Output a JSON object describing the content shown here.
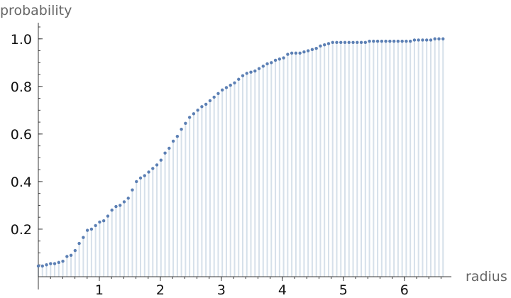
{
  "chart_data": {
    "type": "scatter",
    "style": "discrete-plot-with-filling-to-axis",
    "xlabel": "radius",
    "ylabel": "probability",
    "xlim": [
      0,
      6.7
    ],
    "ylim": [
      0,
      1.05
    ],
    "x_ticks": [
      1,
      2,
      3,
      4,
      5,
      6
    ],
    "y_ticks": [
      0.2,
      0.4,
      0.6,
      0.8,
      1.0
    ],
    "y_tick_labels": [
      "0.2",
      "0.4",
      "0.6",
      "0.8",
      "1.0"
    ],
    "x_minor_step": 0.2,
    "y_minor_step": 0.05,
    "grid": false,
    "colors": {
      "point": "#5b7fb4",
      "stem": "#d6e0ea",
      "axis": "#3a3a3a"
    },
    "series": [
      {
        "x": [
          0.0,
          0.067,
          0.134,
          0.201,
          0.268,
          0.335,
          0.402,
          0.469,
          0.536,
          0.603,
          0.67,
          0.737,
          0.804,
          0.871,
          0.938,
          1.005,
          1.072,
          1.139,
          1.206,
          1.273,
          1.34,
          1.407,
          1.474,
          1.541,
          1.608,
          1.675,
          1.742,
          1.809,
          1.876,
          1.943,
          2.01,
          2.077,
          2.144,
          2.211,
          2.278,
          2.345,
          2.412,
          2.479,
          2.546,
          2.613,
          2.68,
          2.747,
          2.814,
          2.881,
          2.948,
          3.015,
          3.082,
          3.149,
          3.216,
          3.283,
          3.35,
          3.417,
          3.484,
          3.551,
          3.618,
          3.685,
          3.752,
          3.819,
          3.886,
          3.953,
          4.02,
          4.087,
          4.154,
          4.221,
          4.288,
          4.355,
          4.422,
          4.489,
          4.556,
          4.623,
          4.69,
          4.757,
          4.824,
          4.891,
          4.958,
          5.025,
          5.092,
          5.159,
          5.226,
          5.293,
          5.36,
          5.427,
          5.494,
          5.561,
          5.628,
          5.695,
          5.762,
          5.829,
          5.896,
          5.963,
          6.03,
          6.097,
          6.164,
          6.231,
          6.298,
          6.365,
          6.432,
          6.499,
          6.566,
          6.633
        ],
        "y": [
          0.045,
          0.045,
          0.05,
          0.055,
          0.055,
          0.06,
          0.065,
          0.085,
          0.09,
          0.11,
          0.14,
          0.165,
          0.195,
          0.2,
          0.215,
          0.23,
          0.235,
          0.255,
          0.28,
          0.295,
          0.3,
          0.315,
          0.33,
          0.365,
          0.4,
          0.415,
          0.425,
          0.44,
          0.455,
          0.47,
          0.49,
          0.52,
          0.54,
          0.57,
          0.59,
          0.62,
          0.645,
          0.67,
          0.685,
          0.7,
          0.715,
          0.725,
          0.74,
          0.755,
          0.77,
          0.785,
          0.795,
          0.805,
          0.815,
          0.83,
          0.845,
          0.855,
          0.86,
          0.865,
          0.875,
          0.885,
          0.895,
          0.9,
          0.91,
          0.915,
          0.92,
          0.935,
          0.94,
          0.94,
          0.94,
          0.945,
          0.95,
          0.955,
          0.96,
          0.97,
          0.975,
          0.98,
          0.985,
          0.985,
          0.985,
          0.985,
          0.985,
          0.985,
          0.985,
          0.985,
          0.985,
          0.99,
          0.99,
          0.99,
          0.99,
          0.99,
          0.99,
          0.99,
          0.99,
          0.99,
          0.99,
          0.99,
          0.995,
          0.995,
          0.995,
          0.995,
          0.995,
          1.0,
          1.0,
          1.0
        ]
      }
    ]
  }
}
